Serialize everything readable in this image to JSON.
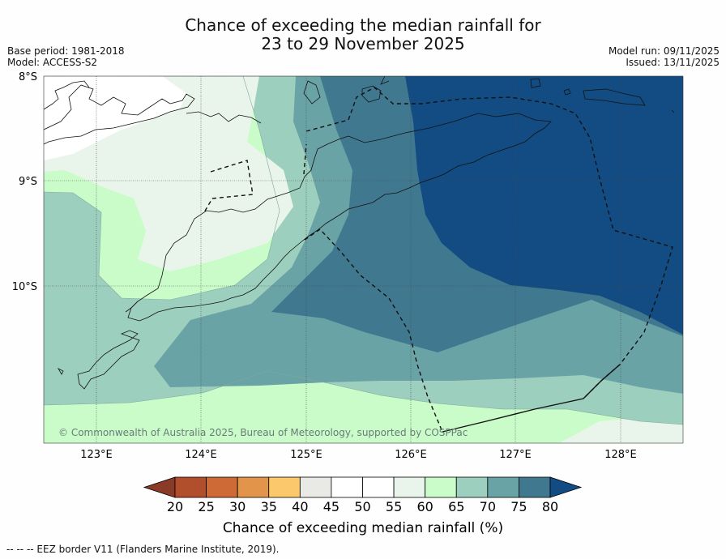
{
  "title": {
    "line1": "Chance of exceeding the median rainfall for",
    "line2": "23 to 29 November 2025"
  },
  "meta": {
    "base_period": "Base period: 1981-2018",
    "model": "Model: ACCESS-S2",
    "model_run": "Model run: 09/11/2025",
    "issued": "Issued: 13/11/2025"
  },
  "map": {
    "lat_labels": [
      "8°S",
      "9°S",
      "10°S"
    ],
    "lon_labels": [
      "123°E",
      "124°E",
      "125°E",
      "126°E",
      "127°E",
      "128°E"
    ],
    "copyright": "© Commonwealth of Australia 2025, Bureau of Meteorology, supported by COSPPac"
  },
  "colorbar": {
    "title": "Chance of exceeding median rainfall (%)",
    "ticks": [
      "20",
      "25",
      "30",
      "35",
      "40",
      "45",
      "50",
      "55",
      "60",
      "65",
      "70",
      "75",
      "80"
    ],
    "colors": [
      "#8a3b28",
      "#b14e2b",
      "#cd6a35",
      "#e2944a",
      "#fbc96b",
      "#e9e9e6",
      "#ffffff",
      "#ffffff",
      "#e9f5ea",
      "#c9fcc9",
      "#9ccfbd",
      "#6aa3a6",
      "#40798f",
      "#124c83"
    ]
  },
  "footer": {
    "legend": "--  --  -- EEZ border V11 (Flanders Marine Institute, 2019)."
  }
}
